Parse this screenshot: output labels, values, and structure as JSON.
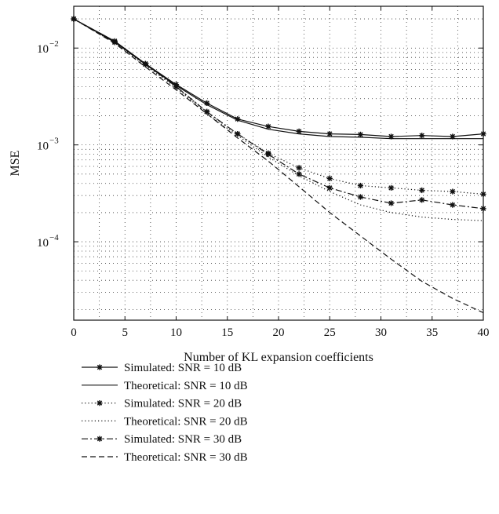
{
  "chart_data": {
    "type": "line",
    "title": "",
    "xlabel": "Number of KL expansion coefficients",
    "ylabel": "MSE",
    "xlim": [
      0,
      40
    ],
    "ylim": [
      1.55e-05,
      0.027
    ],
    "yscale": "log",
    "grid": true,
    "legend_position": "below",
    "x_ticks": [
      0,
      5,
      10,
      15,
      20,
      25,
      30,
      35,
      40
    ],
    "y_ticks": [
      {
        "value": 0.01,
        "base": "10",
        "exp": "−2"
      },
      {
        "value": 0.001,
        "base": "10",
        "exp": "−3"
      },
      {
        "value": 0.0001,
        "base": "10",
        "exp": "−4"
      }
    ],
    "series": [
      {
        "name": "Simulated: SNR = 10 dB",
        "style": "solid",
        "marker": "star",
        "x": [
          0,
          4,
          7,
          10,
          13,
          16,
          19,
          22,
          25,
          28,
          31,
          34,
          37,
          40
        ],
        "y": [
          0.02,
          0.0118,
          0.0069,
          0.0042,
          0.0027,
          0.00185,
          0.00155,
          0.00138,
          0.0013,
          0.00128,
          0.00122,
          0.00125,
          0.00122,
          0.0013
        ]
      },
      {
        "name": "Theoretical: SNR = 10 dB",
        "style": "solid",
        "marker": "none",
        "x": [
          0,
          4,
          7,
          10,
          13,
          16,
          19,
          22,
          25,
          28,
          31,
          34,
          37,
          40
        ],
        "y": [
          0.02,
          0.0115,
          0.0068,
          0.0041,
          0.0026,
          0.0018,
          0.00145,
          0.0013,
          0.00122,
          0.0012,
          0.00116,
          0.00116,
          0.00116,
          0.00116
        ]
      },
      {
        "name": "Simulated: SNR = 20 dB",
        "style": "dotted",
        "marker": "star",
        "x": [
          0,
          4,
          7,
          10,
          13,
          16,
          19,
          22,
          25,
          28,
          31,
          34,
          37,
          40
        ],
        "y": [
          0.02,
          0.0115,
          0.0068,
          0.004,
          0.0022,
          0.0013,
          0.00082,
          0.00058,
          0.00045,
          0.00038,
          0.00036,
          0.00034,
          0.00033,
          0.00031
        ]
      },
      {
        "name": "Theoretical: SNR = 20 dB",
        "style": "dotted",
        "marker": "none",
        "x": [
          0,
          4,
          7,
          10,
          13,
          16,
          19,
          22,
          25,
          28,
          31,
          34,
          37,
          40
        ],
        "y": [
          0.02,
          0.0113,
          0.0066,
          0.0039,
          0.0021,
          0.00125,
          0.00075,
          0.00048,
          0.00033,
          0.00024,
          0.0002,
          0.00018,
          0.00017,
          0.000165
        ]
      },
      {
        "name": "Simulated: SNR = 30 dB",
        "style": "dashdot",
        "marker": "star",
        "x": [
          0,
          4,
          7,
          10,
          13,
          16,
          19,
          22,
          25,
          28,
          31,
          34,
          37,
          40
        ],
        "y": [
          0.02,
          0.0115,
          0.0068,
          0.004,
          0.0022,
          0.0013,
          0.0008,
          0.0005,
          0.00036,
          0.00029,
          0.00025,
          0.00027,
          0.00024,
          0.00022
        ]
      },
      {
        "name": "Theoretical: SNR = 30 dB",
        "style": "dashed",
        "marker": "none",
        "x": [
          0,
          4,
          7,
          10,
          13,
          16,
          19,
          22,
          25,
          28,
          31,
          34,
          37,
          40
        ],
        "y": [
          0.02,
          0.0112,
          0.0064,
          0.0037,
          0.0021,
          0.00118,
          0.00068,
          0.00037,
          0.0002,
          0.000115,
          6.6e-05,
          3.9e-05,
          2.6e-05,
          1.85e-05
        ]
      }
    ]
  }
}
